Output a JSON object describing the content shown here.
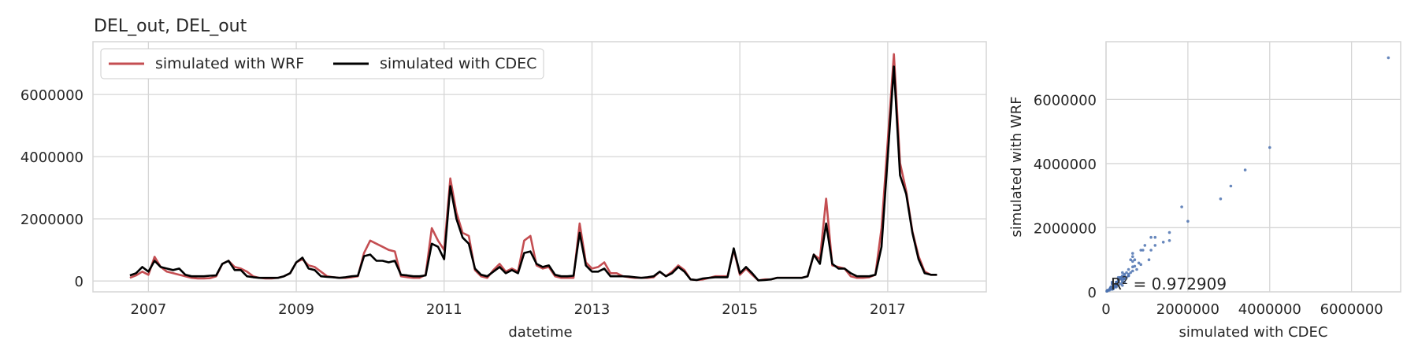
{
  "chart_data": [
    {
      "type": "line",
      "title": "DEL_out, DEL_out",
      "xlabel": "datetime",
      "ylabel": "",
      "xlim": [
        "2006-04-01",
        "2018-05-01"
      ],
      "ylim": [
        -350000,
        7700000
      ],
      "x_ticks": [
        "2007",
        "2009",
        "2011",
        "2013",
        "2015",
        "2017"
      ],
      "y_ticks": [
        0,
        2000000,
        4000000,
        6000000
      ],
      "y_tick_labels": [
        "0",
        "2000000",
        "4000000",
        "6000000"
      ],
      "grid": true,
      "legend": "top-left",
      "legend_entries": [
        "simulated with WRF",
        "simulated with CDEC"
      ],
      "x": [
        "2006-10",
        "2006-11",
        "2006-12",
        "2007-01",
        "2007-02",
        "2007-03",
        "2007-04",
        "2007-05",
        "2007-06",
        "2007-07",
        "2007-08",
        "2007-09",
        "2007-10",
        "2007-11",
        "2007-12",
        "2008-01",
        "2008-02",
        "2008-03",
        "2008-04",
        "2008-05",
        "2008-06",
        "2008-07",
        "2008-08",
        "2008-09",
        "2008-10",
        "2008-11",
        "2008-12",
        "2009-01",
        "2009-02",
        "2009-03",
        "2009-04",
        "2009-05",
        "2009-06",
        "2009-07",
        "2009-08",
        "2009-09",
        "2009-10",
        "2009-11",
        "2009-12",
        "2010-01",
        "2010-02",
        "2010-03",
        "2010-04",
        "2010-05",
        "2010-06",
        "2010-07",
        "2010-08",
        "2010-09",
        "2010-10",
        "2010-11",
        "2010-12",
        "2011-01",
        "2011-02",
        "2011-03",
        "2011-04",
        "2011-05",
        "2011-06",
        "2011-07",
        "2011-08",
        "2011-09",
        "2011-10",
        "2011-11",
        "2011-12",
        "2012-01",
        "2012-02",
        "2012-03",
        "2012-04",
        "2012-05",
        "2012-06",
        "2012-07",
        "2012-08",
        "2012-09",
        "2012-10",
        "2012-11",
        "2012-12",
        "2013-01",
        "2013-02",
        "2013-03",
        "2013-04",
        "2013-05",
        "2013-06",
        "2013-07",
        "2013-08",
        "2013-09",
        "2013-10",
        "2013-11",
        "2013-12",
        "2014-01",
        "2014-02",
        "2014-03",
        "2014-04",
        "2014-05",
        "2014-06",
        "2014-07",
        "2014-08",
        "2014-09",
        "2014-10",
        "2014-11",
        "2014-12",
        "2015-01",
        "2015-02",
        "2015-03",
        "2015-04",
        "2015-05",
        "2015-06",
        "2015-07",
        "2015-08",
        "2015-09",
        "2015-10",
        "2015-11",
        "2015-12",
        "2016-01",
        "2016-02",
        "2016-03",
        "2016-04",
        "2016-05",
        "2016-06",
        "2016-07",
        "2016-08",
        "2016-09",
        "2016-10",
        "2016-11",
        "2016-12",
        "2017-01",
        "2017-02",
        "2017-03",
        "2017-04",
        "2017-05",
        "2017-06",
        "2017-07",
        "2017-08",
        "2017-09"
      ],
      "series": [
        {
          "name": "simulated with WRF",
          "color": "#c44e52",
          "values": [
            100000,
            180000,
            300000,
            200000,
            780000,
            450000,
            300000,
            250000,
            200000,
            150000,
            100000,
            80000,
            80000,
            90000,
            150000,
            550000,
            650000,
            450000,
            400000,
            300000,
            150000,
            100000,
            80000,
            80000,
            100000,
            150000,
            250000,
            600000,
            700000,
            500000,
            450000,
            300000,
            150000,
            120000,
            100000,
            100000,
            120000,
            150000,
            900000,
            1300000,
            1200000,
            1100000,
            1000000,
            950000,
            150000,
            120000,
            100000,
            100000,
            200000,
            1700000,
            1300000,
            1000000,
            3300000,
            2200000,
            1550000,
            1450000,
            350000,
            150000,
            100000,
            350000,
            550000,
            300000,
            400000,
            300000,
            1300000,
            1450000,
            500000,
            400000,
            450000,
            150000,
            100000,
            100000,
            100000,
            1850000,
            600000,
            400000,
            450000,
            600000,
            250000,
            250000,
            150000,
            120000,
            100000,
            100000,
            100000,
            120000,
            300000,
            150000,
            300000,
            500000,
            350000,
            50000,
            30000,
            50000,
            100000,
            150000,
            150000,
            150000,
            1000000,
            200000,
            400000,
            200000,
            20000,
            50000,
            50000,
            100000,
            100000,
            100000,
            100000,
            100000,
            150000,
            850000,
            700000,
            2650000,
            500000,
            450000,
            400000,
            150000,
            100000,
            100000,
            120000,
            200000,
            1700000,
            4500000,
            7300000,
            3800000,
            2900000,
            1600000,
            800000,
            300000,
            200000,
            200000
          ]
        },
        {
          "name": "simulated with CDEC",
          "color": "#000000",
          "values": [
            180000,
            250000,
            450000,
            300000,
            650000,
            450000,
            400000,
            350000,
            400000,
            200000,
            150000,
            150000,
            150000,
            170000,
            180000,
            550000,
            650000,
            350000,
            350000,
            150000,
            120000,
            100000,
            100000,
            100000,
            100000,
            150000,
            250000,
            600000,
            750000,
            400000,
            350000,
            150000,
            130000,
            120000,
            100000,
            120000,
            150000,
            170000,
            800000,
            850000,
            650000,
            650000,
            600000,
            650000,
            200000,
            180000,
            150000,
            150000,
            180000,
            1200000,
            1100000,
            700000,
            3050000,
            2000000,
            1400000,
            1200000,
            400000,
            200000,
            150000,
            300000,
            450000,
            250000,
            350000,
            250000,
            900000,
            950000,
            550000,
            450000,
            500000,
            200000,
            150000,
            150000,
            170000,
            1550000,
            500000,
            300000,
            300000,
            400000,
            150000,
            150000,
            150000,
            140000,
            120000,
            100000,
            120000,
            150000,
            300000,
            150000,
            250000,
            450000,
            300000,
            50000,
            30000,
            80000,
            100000,
            120000,
            120000,
            120000,
            1050000,
            250000,
            450000,
            250000,
            20000,
            30000,
            50000,
            100000,
            100000,
            100000,
            100000,
            100000,
            150000,
            850000,
            550000,
            1850000,
            550000,
            400000,
            400000,
            250000,
            150000,
            150000,
            150000,
            200000,
            1100000,
            4000000,
            6900000,
            3400000,
            2800000,
            1550000,
            700000,
            250000,
            200000,
            200000
          ]
        }
      ]
    },
    {
      "type": "scatter",
      "title": "",
      "xlabel": "simulated with CDEC",
      "ylabel": "simulated with WRF",
      "xlim": [
        0,
        7200000
      ],
      "ylim": [
        0,
        7800000
      ],
      "x_ticks": [
        0,
        2000000,
        4000000,
        6000000
      ],
      "x_tick_labels": [
        "0",
        "2000000",
        "4000000",
        "6000000"
      ],
      "y_ticks": [
        0,
        2000000,
        4000000,
        6000000
      ],
      "y_tick_labels": [
        "0",
        "2000000",
        "4000000",
        "6000000"
      ],
      "grid": true,
      "annotation_prefix": "R",
      "annotation_exp": "2",
      "annotation_text": " = 0.972909",
      "points_color": "#4c72b0"
    }
  ]
}
